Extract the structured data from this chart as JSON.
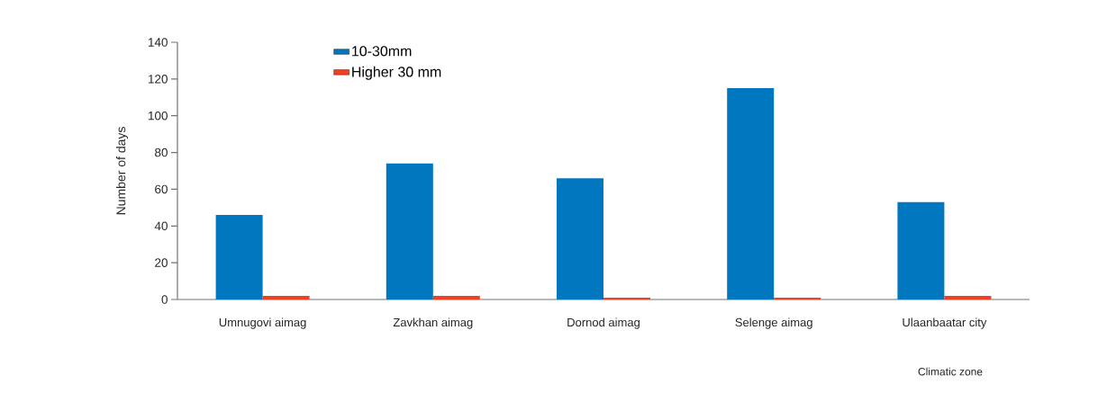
{
  "chart_data": {
    "type": "bar",
    "xlabel": "Climatic zone",
    "ylabel": "Number of days",
    "categories": [
      "Umnugovi aimag",
      "Zavkhan aimag",
      "Dornod aimag",
      "Selenge aimag",
      "Ulaanbaatar city"
    ],
    "series": [
      {
        "name": "10-30mm",
        "color": "#0077bf",
        "values": [
          46,
          74,
          66,
          115,
          53
        ]
      },
      {
        "name": "Higher 30 mm",
        "color": "#ee4023",
        "values": [
          2,
          2,
          1,
          1,
          2
        ]
      }
    ],
    "ylim": [
      0,
      140
    ],
    "yticks": [
      0,
      20,
      40,
      60,
      80,
      100,
      120,
      140
    ],
    "grid": false,
    "legend": "top left"
  }
}
